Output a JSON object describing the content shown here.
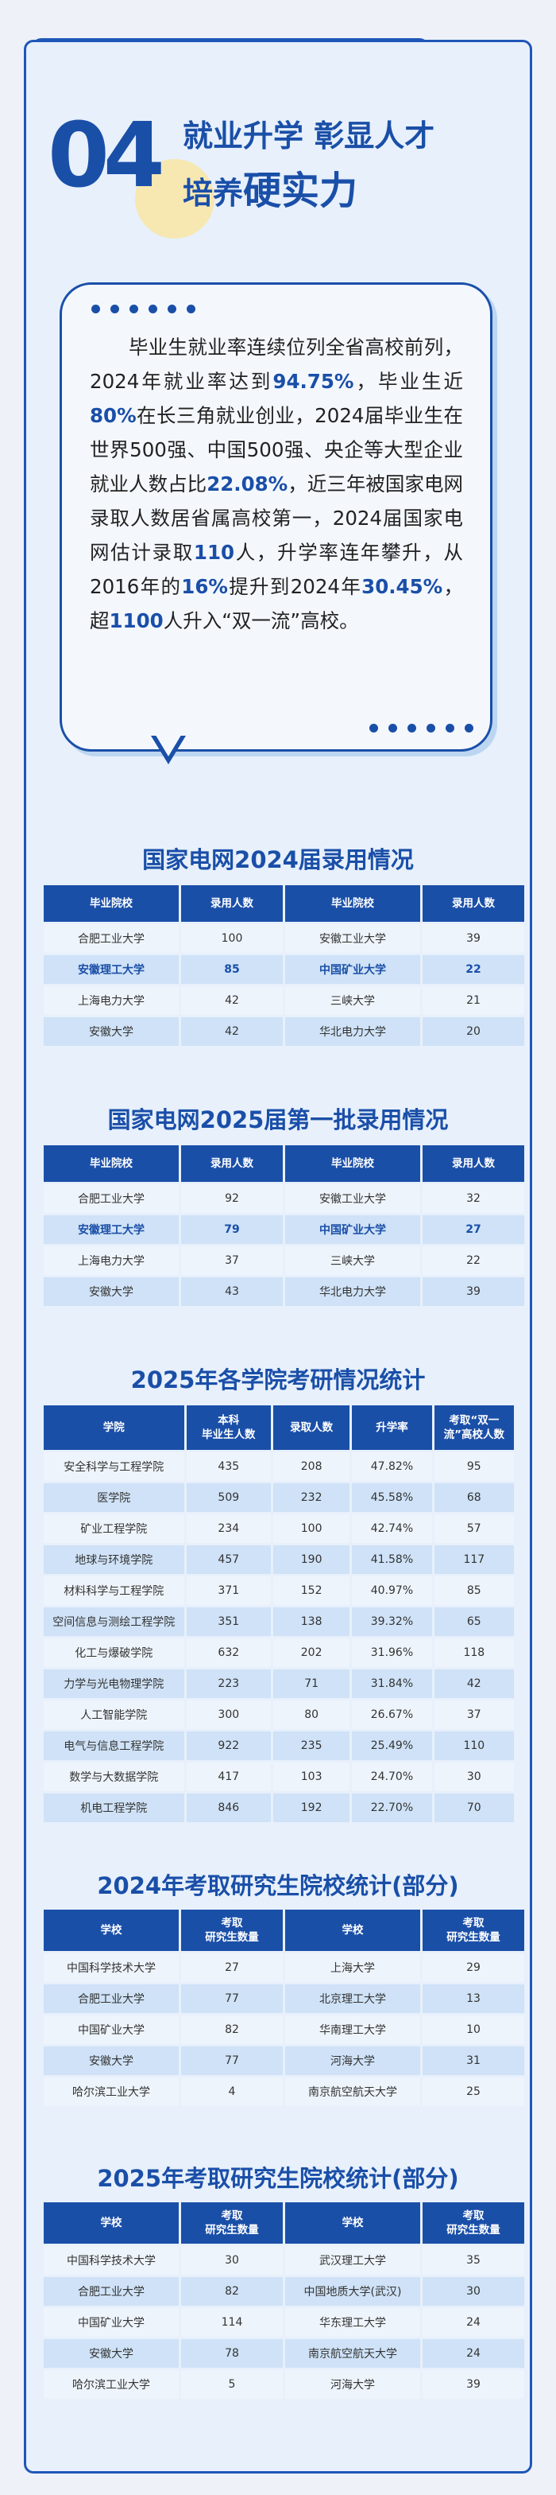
{
  "header": {
    "number": "04",
    "line1": "就业升学  彰显人才",
    "line2_prefix": "培养",
    "line2_big": "硬实力"
  },
  "intro": {
    "s1": "毕业生就业率连续位列全省高校前列，2024年就业率达到",
    "v1": "94.75%",
    "s2": "，毕业生近",
    "v2": "80%",
    "s3": "在长三角就业创业，2024届毕业生在世界500强、中国500强、央企等大型企业就业人数占比",
    "v3": "22.08%",
    "s4": "，近三年被国家电网录取人数居省属高校第一，2024届国家电网估计录取",
    "v4": "110",
    "s5": "人，升学率连年攀升，从2016年的",
    "v5": "16%",
    "s6": "提升到2024年",
    "v6": "30.45%",
    "s7": "，超",
    "v7": "1100",
    "s8": "人升入“双一流”高校。"
  },
  "sgcc2024": {
    "title": "国家电网2024届录用情况",
    "headers": [
      "毕业院校",
      "录用人数",
      "毕业院校",
      "录用人数"
    ],
    "rows": [
      [
        "合肥工业大学",
        "100",
        "安徽工业大学",
        "39"
      ],
      [
        "安徽理工大学",
        "85",
        "中国矿业大学",
        "22"
      ],
      [
        "上海电力大学",
        "42",
        "三峡大学",
        "21"
      ],
      [
        "安徽大学",
        "42",
        "华北电力大学",
        "20"
      ]
    ]
  },
  "sgcc2025": {
    "title": "国家电网2025届第一批录用情况",
    "headers": [
      "毕业院校",
      "录用人数",
      "毕业院校",
      "录用人数"
    ],
    "rows": [
      [
        "合肥工业大学",
        "92",
        "安徽工业大学",
        "32"
      ],
      [
        "安徽理工大学",
        "79",
        "中国矿业大学",
        "27"
      ],
      [
        "上海电力大学",
        "37",
        "三峡大学",
        "22"
      ],
      [
        "安徽大学",
        "43",
        "华北电力大学",
        "39"
      ]
    ]
  },
  "college": {
    "title": "2025年各学院考研情况统计",
    "headers": [
      "学院",
      "本科\n毕业生人数",
      "录取人数",
      "升学率",
      "考取“双一\n流”高校人数"
    ],
    "rows": [
      [
        "安全科学与工程学院",
        "435",
        "208",
        "47.82%",
        "95"
      ],
      [
        "医学院",
        "509",
        "232",
        "45.58%",
        "68"
      ],
      [
        "矿业工程学院",
        "234",
        "100",
        "42.74%",
        "57"
      ],
      [
        "地球与环境学院",
        "457",
        "190",
        "41.58%",
        "117"
      ],
      [
        "材料科学与工程学院",
        "371",
        "152",
        "40.97%",
        "85"
      ],
      [
        "空间信息与测绘工程学院",
        "351",
        "138",
        "39.32%",
        "65"
      ],
      [
        "化工与爆破学院",
        "632",
        "202",
        "31.96%",
        "118"
      ],
      [
        "力学与光电物理学院",
        "223",
        "71",
        "31.84%",
        "42"
      ],
      [
        "人工智能学院",
        "300",
        "80",
        "26.67%",
        "37"
      ],
      [
        "电气与信息工程学院",
        "922",
        "235",
        "25.49%",
        "110"
      ],
      [
        "数学与大数据学院",
        "417",
        "103",
        "24.70%",
        "30"
      ],
      [
        "机电工程学院",
        "846",
        "192",
        "22.70%",
        "70"
      ]
    ]
  },
  "grad2024": {
    "title": "2024年考取研究生院校统计(部分)",
    "headers": [
      "学校",
      "考取\n研究生数量",
      "学校",
      "考取\n研究生数量"
    ],
    "rows": [
      [
        "中国科学技术大学",
        "27",
        "上海大学",
        "29"
      ],
      [
        "合肥工业大学",
        "77",
        "北京理工大学",
        "13"
      ],
      [
        "中国矿业大学",
        "82",
        "华南理工大学",
        "10"
      ],
      [
        "安徽大学",
        "77",
        "河海大学",
        "31"
      ],
      [
        "哈尔滨工业大学",
        "4",
        "南京航空航天大学",
        "25"
      ]
    ]
  },
  "grad2025": {
    "title": "2025年考取研究生院校统计(部分)",
    "headers": [
      "学校",
      "考取\n研究生数量",
      "学校",
      "考取\n研究生数量"
    ],
    "rows": [
      [
        "中国科学技术大学",
        "30",
        "武汉理工大学",
        "35"
      ],
      [
        "合肥工业大学",
        "82",
        "中国地质大学(武汉)",
        "30"
      ],
      [
        "中国矿业大学",
        "114",
        "华东理工大学",
        "24"
      ],
      [
        "安徽大学",
        "78",
        "南京航空航天大学",
        "24"
      ],
      [
        "哈尔滨工业大学",
        "5",
        "河海大学",
        "39"
      ]
    ]
  }
}
